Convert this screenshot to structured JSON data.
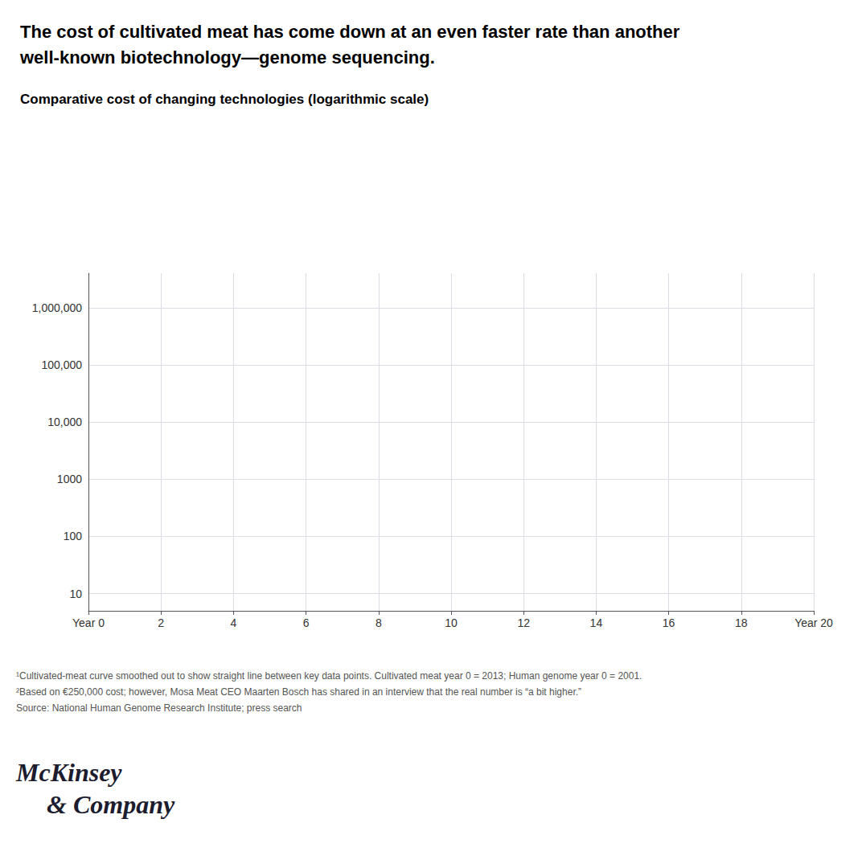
{
  "chart_data": {
    "type": "line",
    "title": "The cost of cultivated meat has come down at an even faster rate than another\nwell-known biotechnology—genome sequencing.",
    "subtitle": "Comparative cost of changing technologies (logarithmic scale)",
    "annotations": [
      "¹Cultivated-meat curve smoothed out to show straight line between key data points. Cultivated meat year 0 = 2013; Human genome year 0 = 2001.",
      "²Based on €250,000 cost; however, Mosa Meat CEO Maarten Bosch has shared in an interview that the real number is “a bit higher.”",
      "Source: National Human Genome Research Institute; press search",
      "McKinsey",
      "& Company"
    ],
    "xlim": [
      0,
      20
    ],
    "xticks": [
      {
        "value": 0,
        "label": "Year 0"
      },
      2,
      4,
      6,
      8,
      10,
      12,
      14,
      16,
      18,
      {
        "value": 20,
        "label": "Year 20"
      }
    ],
    "ylim": [
      5,
      4000000
    ],
    "yticks": [
      10,
      100,
      1000,
      {
        "value": 10000,
        "label": "10,000"
      },
      {
        "value": 100000,
        "label": "100,000"
      },
      {
        "value": 1000000,
        "label": "1,000,000"
      }
    ],
    "log": "y",
    "grid": true
  }
}
